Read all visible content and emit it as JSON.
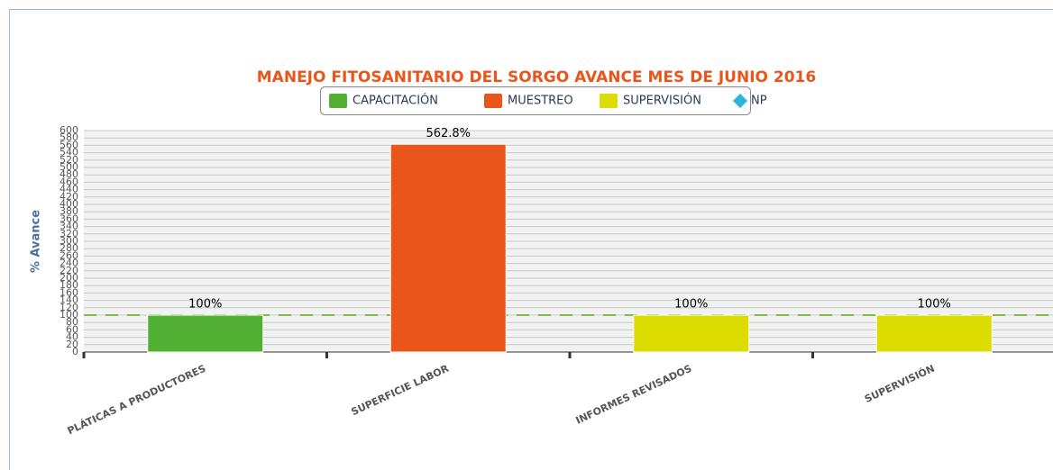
{
  "chart_data": {
    "type": "bar",
    "title": "MANEJO FITOSANITARIO DEL SORGO AVANCE MES DE JUNIO 2016",
    "y_label": "% Avance",
    "categories": [
      "PLÁTICAS A PRODUCTORES",
      "SUPERFICIE LABOR",
      "INFORMES REVISADOS",
      "SUPERVISIÓN"
    ],
    "series": [
      {
        "name": "CAPACITACIÓN",
        "color": "#52b135",
        "values": [
          100,
          null,
          null,
          null
        ],
        "value_labels": [
          "100%",
          null,
          null,
          null
        ]
      },
      {
        "name": "MUESTREO",
        "color": "#ea5619",
        "values": [
          null,
          562.8,
          null,
          null
        ],
        "value_labels": [
          null,
          "562.8%",
          null,
          null
        ]
      },
      {
        "name": "SUPERVISIÓN",
        "color": "#dcdc00",
        "values": [
          null,
          null,
          100,
          100
        ],
        "value_labels": [
          null,
          null,
          "100%",
          "100%"
        ]
      },
      {
        "name": "NP",
        "color": "#29b6d8",
        "values": [
          null,
          null,
          null,
          null
        ]
      }
    ],
    "reference_line": {
      "value": 100,
      "color": "#7ac142"
    },
    "ylim": [
      0,
      600
    ],
    "yticks": [
      0,
      20,
      40,
      60,
      80,
      100,
      120,
      140,
      160,
      180,
      200,
      220,
      240,
      260,
      280,
      300,
      320,
      340,
      360,
      380,
      400,
      420,
      440,
      460,
      480,
      500,
      520,
      540,
      560,
      580,
      600
    ],
    "grid": true,
    "legend": "top"
  }
}
